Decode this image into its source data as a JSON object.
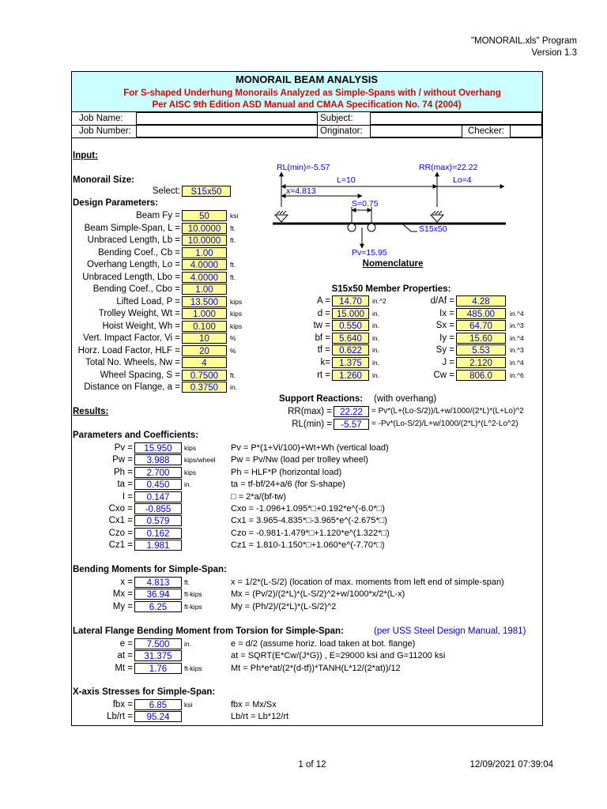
{
  "header": {
    "program": "\"MONORAIL.xls\" Program",
    "version": "Version 1.3"
  },
  "title": {
    "main": "MONORAIL BEAM ANALYSIS",
    "sub1": "For S-shaped Underhung Monorails Analyzed as Simple-Spans with / without Overhang",
    "sub2": "Per AISC 9th Edition ASD Manual and CMAA Specification No. 74 (2004)"
  },
  "job": {
    "job_name": "Job Name:",
    "job_number": "Job Number:",
    "subject": "Subject:",
    "originator": "Originator:",
    "checker": "Checker:"
  },
  "input": {
    "heading": "Input:",
    "monorail_size": "Monorail Size:",
    "select_label": "Select:",
    "select_value": "S15x50",
    "design_parameters": "Design Parameters:",
    "params": [
      {
        "label": "Beam Fy =",
        "value": "50",
        "unit": "ksi"
      },
      {
        "label": "Beam Simple-Span, L =",
        "value": "10.0000",
        "unit": "ft."
      },
      {
        "label": "Unbraced Length, Lb =",
        "value": "10.0000",
        "unit": "ft."
      },
      {
        "label": "Bending Coef., Cb =",
        "value": "1.00"
      },
      {
        "label": "Overhang Length, Lo =",
        "value": "4.0000",
        "unit": "ft."
      },
      {
        "label": "Unbraced Length, Lbo =",
        "value": "4.0000",
        "unit": "ft."
      },
      {
        "label": "Bending Coef., Cbo =",
        "value": "1.00"
      },
      {
        "label": "Lifted Load, P =",
        "value": "13.500",
        "unit": "kips"
      },
      {
        "label": "Trolley Weight, Wt =",
        "value": "1.000",
        "unit": "kips"
      },
      {
        "label": "Hoist Weight, Wh =",
        "value": "0.100",
        "unit": "kips"
      },
      {
        "label": "Vert. Impact Factor, Vi =",
        "value": "10",
        "unit": "%"
      },
      {
        "label": "Horz. Load Factor, HLF =",
        "value": "20",
        "unit": "%"
      },
      {
        "label": "Total No. Wheels, Nw =",
        "value": "4"
      },
      {
        "label": "Wheel Spacing, S =",
        "value": "0.7500",
        "unit": "ft."
      },
      {
        "label": "Distance on Flange, a =",
        "value": "0.3750",
        "unit": "in."
      }
    ]
  },
  "diagram": {
    "rl": "RL(min)=-5.57",
    "rr": "RR(max)=22.22",
    "l": "L=10",
    "lo": "Lo=4",
    "x": "x=4.813",
    "s": "S=0.75",
    "shape": "S15x50",
    "pv": "Pv=15.95",
    "caption": "Nomenclature"
  },
  "properties": {
    "title": "S15x50 Member Properties:",
    "left": [
      {
        "label": "A =",
        "value": "14.70",
        "unit": "in.^2"
      },
      {
        "label": "d =",
        "value": "15.000",
        "unit": "in."
      },
      {
        "label": "tw =",
        "value": "0.550",
        "unit": "in."
      },
      {
        "label": "bf =",
        "value": "5.640",
        "unit": "in."
      },
      {
        "label": "tf =",
        "value": "0.622",
        "unit": "in."
      },
      {
        "label": "k=",
        "value": "1.375",
        "unit": "in."
      },
      {
        "label": "rt =",
        "value": "1.260",
        "unit": "in."
      }
    ],
    "right": [
      {
        "label": "d/Af =",
        "value": "4.28"
      },
      {
        "label": "Ix =",
        "value": "485.00",
        "unit": "in.^4"
      },
      {
        "label": "Sx =",
        "value": "64.70",
        "unit": "in.^3"
      },
      {
        "label": "Iy =",
        "value": "15.60",
        "unit": "in.^4"
      },
      {
        "label": "Sy =",
        "value": "5.53",
        "unit": "in.^3"
      },
      {
        "label": "J =",
        "value": "2.120",
        "unit": "in.^4"
      },
      {
        "label": "Cw =",
        "value": "806.0",
        "unit": "in.^6"
      }
    ]
  },
  "reactions": {
    "heading": "Support Reactions:",
    "note": "(with overhang)",
    "rows": [
      {
        "label": "RR(max) =",
        "value": "22.22",
        "formula": "= Pv*(L+(Lo-S/2))/L+w/1000/(2*L)*(L+Lo)^2"
      },
      {
        "label": "RL(min) =",
        "value": "-5.57",
        "formula": "= -Pv*(Lo-S/2)/L+w/1000/(2*L)*(L^2-Lo^2)"
      }
    ]
  },
  "results": {
    "heading": "Results:",
    "sections": [
      {
        "heading": "Parameters and Coefficients:",
        "rows": [
          {
            "label": "Pv =",
            "value": "15.950",
            "unit": "kips",
            "formula": "Pv = P*(1+Vi/100)+Wt+Wh (vertical load)"
          },
          {
            "label": "Pw =",
            "value": "3.988",
            "unit": "kips/wheel",
            "formula": "Pw = Pv/Nw (load per trolley wheel)"
          },
          {
            "label": "Ph =",
            "value": "2.700",
            "unit": "kips",
            "formula": "Ph = HLF*P (horizontal load)"
          },
          {
            "label": "ta =",
            "value": "0.450",
            "unit": "in.",
            "formula": "ta = tf-bf/24+a/6  (for S-shape)"
          },
          {
            "label": "I =",
            "value": "0.147",
            "formula": "□ = 2*a/(bf-tw)"
          },
          {
            "label": "Cxo =",
            "value": "-0.855",
            "formula": "Cxo = -1.096+1.095*□+0.192*e^(-6.0*□)"
          },
          {
            "label": "Cx1 =",
            "value": "0.579",
            "formula": "Cx1 = 3.965-4.835*□-3.965*e^(-2.675*□)"
          },
          {
            "label": "Czo =",
            "value": "0.162",
            "formula": "Czo = -0.981-1.479*□+1.120*e^(1.322*□)"
          },
          {
            "label": "Cz1 =",
            "value": "1.981",
            "formula": "Cz1 = 1.810-1.150*□+1.060*e^(-7.70*□)"
          }
        ]
      },
      {
        "heading": "Bending Moments for Simple-Span:",
        "rows": [
          {
            "label": "x =",
            "value": "4.813",
            "unit": "ft.",
            "formula": "x = 1/2*(L-S/2) (location of max. moments from left end of simple-span)"
          },
          {
            "label": "Mx =",
            "value": "36.94",
            "unit": "ft-kips",
            "formula": "Mx = (Pv/2)/(2*L)*(L-S/2)^2+w/1000*x/2*(L-x)"
          },
          {
            "label": "My =",
            "value": "6.25",
            "unit": "ft-kips",
            "formula": "My = (Ph/2)/(2*L)*(L-S/2)^2"
          }
        ]
      },
      {
        "heading": "Lateral Flange Bending Moment from Torsion for Simple-Span:",
        "note": "(per USS Steel Design Manual, 1981)",
        "rows": [
          {
            "label": "e =",
            "value": "7.500",
            "unit": "in.",
            "formula": "e = d/2 (assume horiz. load taken at bot. flange)"
          },
          {
            "label": "at =",
            "value": "31.375",
            "formula": "at = SQRT(E*Cw/(J*G)) , E=29000 ksi  and  G=11200 ksi"
          },
          {
            "label": "Mt =",
            "value": "1.76",
            "unit": "ft-kips",
            "formula": "Mt = Ph*e*at/(2*(d-tf))*TANH(L*12/(2*at))/12"
          }
        ]
      },
      {
        "heading": "X-axis Stresses for Simple-Span:",
        "rows": [
          {
            "label": "fbx =",
            "value": "6.85",
            "unit": "ksi",
            "formula": "fbx = Mx/Sx"
          },
          {
            "label": "Lb/rt =",
            "value": "95.24",
            "formula": "Lb/rt = Lb*12/rt"
          }
        ]
      }
    ]
  },
  "footer": {
    "page": "1 of 12",
    "date": "12/09/2021  07:39:04"
  }
}
